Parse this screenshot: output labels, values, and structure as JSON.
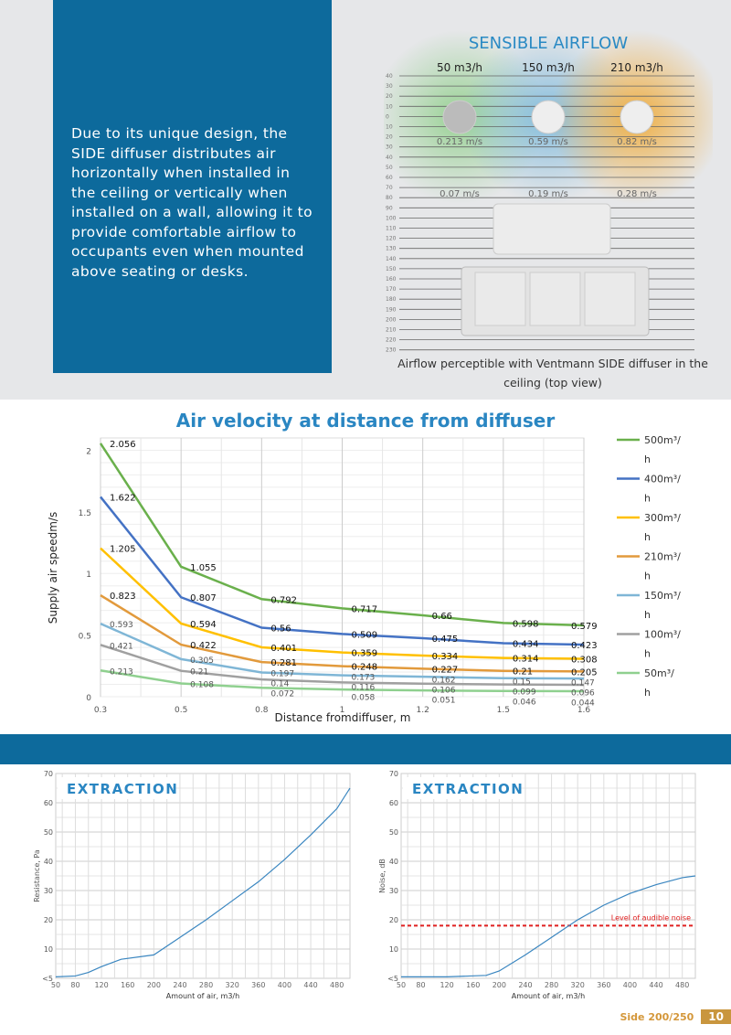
{
  "intro": {
    "text": "Due to its unique design, the SIDE diffuser distributes air horizontally when installed in the ceiling or vertically when installed on a wall, allowing it to provide comfortable airflow to occupants even when mounted above seating or desks."
  },
  "airflow": {
    "title": "SENSIBLE AIRFLOW",
    "flows": [
      {
        "label": "50 m3/h",
        "near": "0.213 m/s",
        "far": "0.07 m/s",
        "color": "#8fcf8a"
      },
      {
        "label": "150 m3/h",
        "near": "0.59 m/s",
        "far": "0.19 m/s",
        "color": "#7ab8dc"
      },
      {
        "label": "210 m3/h",
        "near": "0.82 m/s",
        "far": "0.28 m/s",
        "color": "#f0a830"
      }
    ],
    "scale": [
      "40",
      "30",
      "20",
      "10",
      "0",
      "10",
      "20",
      "30",
      "40",
      "50",
      "60",
      "70",
      "80",
      "90",
      "100",
      "110",
      "120",
      "130",
      "140",
      "150",
      "160",
      "170",
      "180",
      "190",
      "200",
      "210",
      "220",
      "230"
    ],
    "caption": "Airflow perceptible with Ventmann SIDE diffuser in the ceiling (top view)"
  },
  "chart_data": [
    {
      "type": "line",
      "title": "Air velocity at distance from diffuser",
      "xlabel": "Distance fromdiffuser, m",
      "ylabel": "Supply air speedm/s",
      "categories": [
        "0.3",
        "0.5",
        "0.8",
        "1",
        "1.2",
        "1.5",
        "1.6"
      ],
      "ylim": [
        0,
        2.1
      ],
      "yticks": [
        "0",
        "0.5",
        "1",
        "1.5",
        "2"
      ],
      "grid": true,
      "legend": "right",
      "series": [
        {
          "name": "500m³/h",
          "color": "#6ab04c",
          "values": [
            2.056,
            1.055,
            0.792,
            0.717,
            0.66,
            0.598,
            0.579
          ]
        },
        {
          "name": "400m³/h",
          "color": "#4472c4",
          "values": [
            1.622,
            0.807,
            0.56,
            0.509,
            0.475,
            0.434,
            0.423
          ]
        },
        {
          "name": "300m³/h",
          "color": "#ffc000",
          "values": [
            1.205,
            0.594,
            0.401,
            0.359,
            0.334,
            0.314,
            0.308
          ]
        },
        {
          "name": "210m³/h",
          "color": "#e29a3c",
          "values": [
            0.823,
            0.422,
            0.281,
            0.248,
            0.227,
            0.21,
            0.205
          ]
        },
        {
          "name": "150m³/h",
          "color": "#7fb6d6",
          "values": [
            0.593,
            0.305,
            0.197,
            0.173,
            0.162,
            0.15,
            0.147
          ]
        },
        {
          "name": "100m³/h",
          "color": "#a0a0a0",
          "values": [
            0.421,
            0.21,
            0.14,
            0.116,
            0.106,
            0.099,
            0.096
          ]
        },
        {
          "name": "50m³/h",
          "color": "#8fd08f",
          "values": [
            0.213,
            0.108,
            0.072,
            0.058,
            0.051,
            0.046,
            0.044
          ]
        }
      ]
    },
    {
      "type": "line",
      "title": "EXTRACTION",
      "xlabel": "Amount of air, m3/h",
      "ylabel": "Resistance, Pa",
      "xlim": [
        50,
        500
      ],
      "ylim": [
        0,
        70
      ],
      "xticks": [
        "50",
        "80",
        "120",
        "160",
        "200",
        "240",
        "280",
        "320",
        "360",
        "400",
        "440",
        "480"
      ],
      "yticks": [
        "<5",
        "10",
        "20",
        "30",
        "40",
        "50",
        "60",
        "70"
      ],
      "x": [
        50,
        80,
        100,
        120,
        150,
        200,
        240,
        280,
        320,
        360,
        400,
        440,
        480,
        500
      ],
      "y": [
        0.5,
        0.8,
        2,
        4,
        6.5,
        8,
        14,
        20,
        26.5,
        33,
        40.6,
        49,
        58,
        65
      ]
    },
    {
      "type": "line",
      "title": "EXTRACTION",
      "xlabel": "Amount of air, m3/h",
      "ylabel": "Noise, dB",
      "xlim": [
        50,
        500
      ],
      "ylim": [
        0,
        70
      ],
      "xticks": [
        "50",
        "80",
        "120",
        "160",
        "200",
        "240",
        "280",
        "320",
        "360",
        "400",
        "440",
        "480"
      ],
      "yticks": [
        "<5",
        "10",
        "20",
        "30",
        "40",
        "50",
        "60",
        "70"
      ],
      "x": [
        50,
        120,
        180,
        200,
        240,
        280,
        320,
        360,
        400,
        440,
        480,
        500
      ],
      "y": [
        0.5,
        0.5,
        1,
        2.5,
        8,
        14,
        20,
        25,
        29,
        32,
        34.4,
        35
      ],
      "threshold": {
        "value": 18,
        "label": "Level of audible noise",
        "color": "#e02020"
      }
    }
  ],
  "footer": {
    "doc": "Side 200/250",
    "page": "10"
  }
}
